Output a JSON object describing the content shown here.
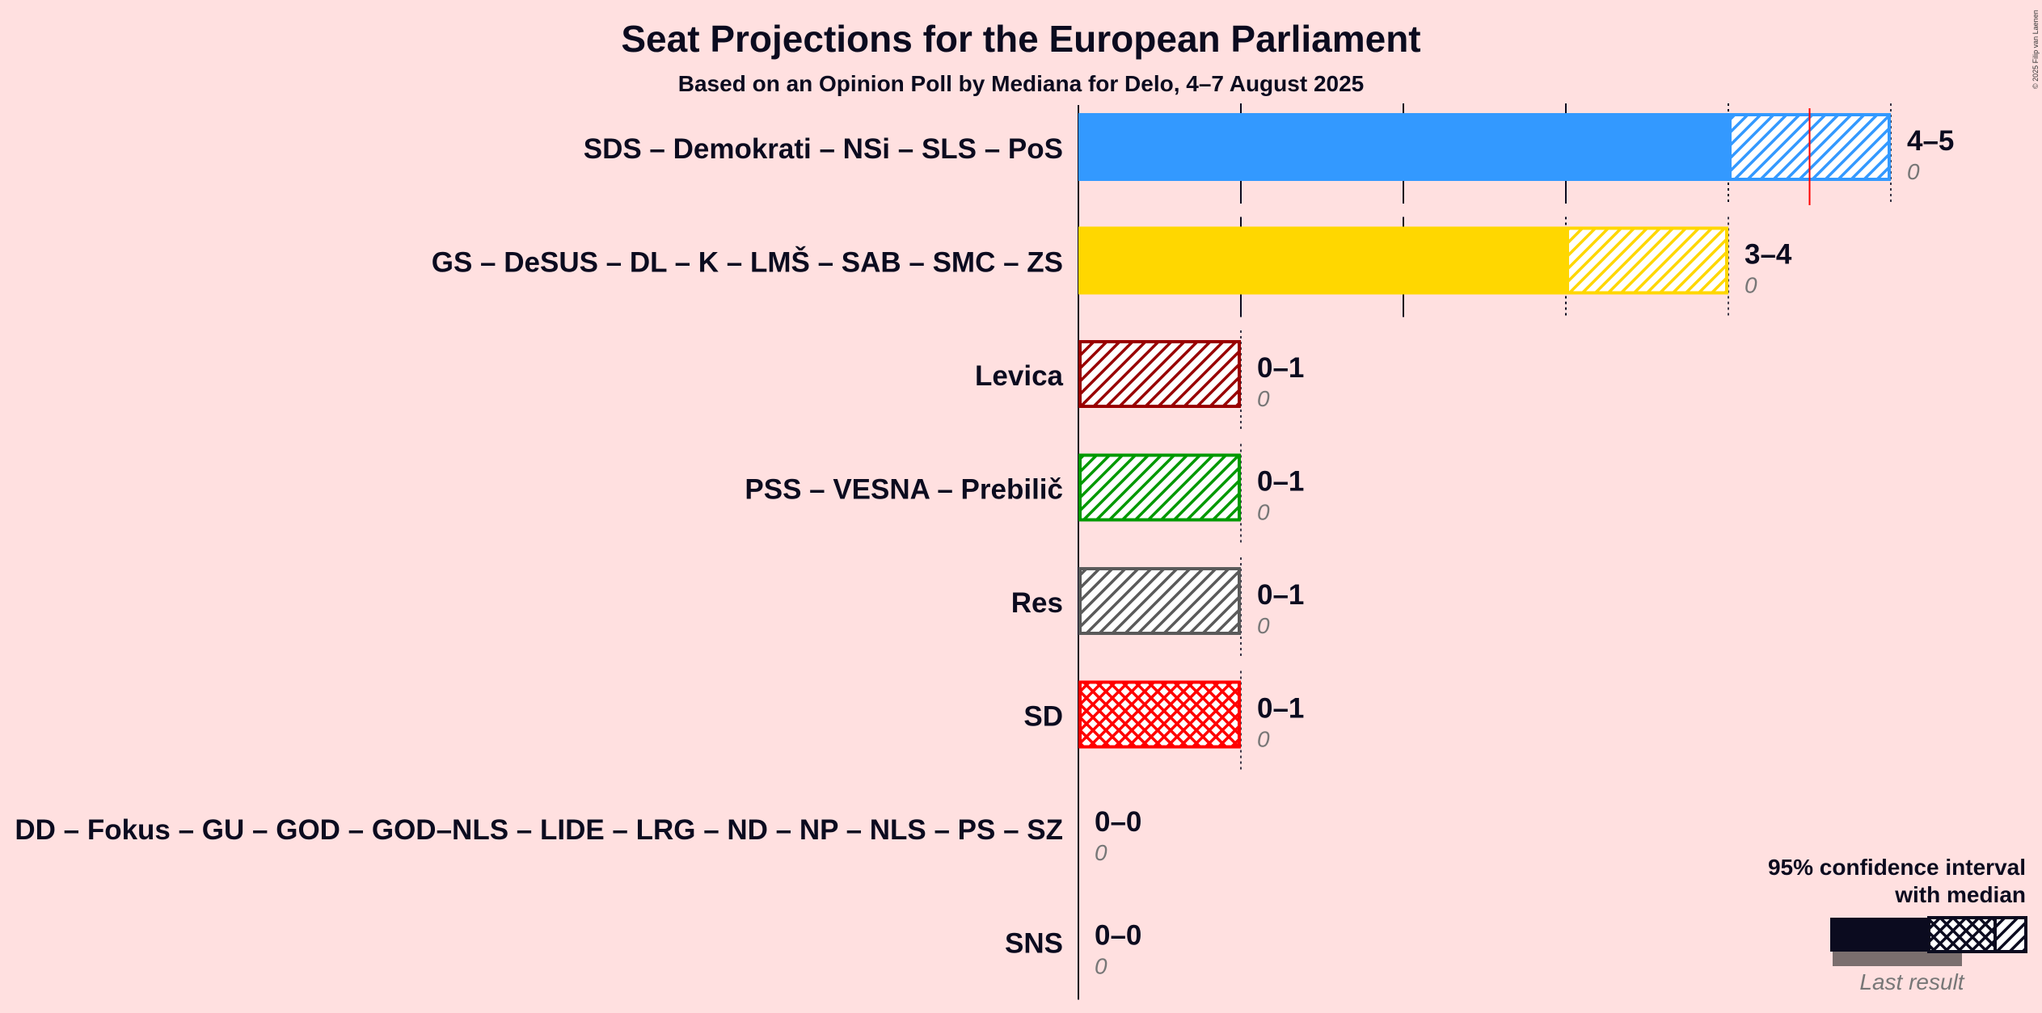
{
  "header": {
    "title": "Seat Projections for the European Parliament",
    "subtitle": "Based on an Opinion Poll by Mediana for Delo, 4–7 August 2025"
  },
  "copyright": "© 2025 Filip van Laenen",
  "legend": {
    "line1": "95% confidence interval",
    "line2": "with median",
    "last_result": "Last result"
  },
  "colors": {
    "background": "#FFE0E0",
    "median_line": "#ff0000"
  },
  "chart_data": {
    "type": "bar",
    "orientation": "horizontal",
    "title": "Seat Projections for the European Parliament",
    "subtitle": "Based on an Opinion Poll by Mediana for Delo, 4–7 August 2025",
    "xlim": [
      0,
      5
    ],
    "grid": true,
    "legend_position": "bottom-right",
    "parties": [
      {
        "name": "SDS – Demokrati – NSi – SLS – PoS",
        "low": 4,
        "high": 5,
        "median": 4.5,
        "last_result": 0,
        "range_label": "4–5",
        "last_label": "0",
        "color": "#3399FF",
        "pattern": "hatch"
      },
      {
        "name": "GS – DeSUS – DL – K – LMŠ – SAB – SMC – ZS",
        "low": 3,
        "high": 4,
        "median": null,
        "last_result": 0,
        "range_label": "3–4",
        "last_label": "0",
        "color": "#FFD700",
        "pattern": "hatch"
      },
      {
        "name": "Levica",
        "low": 0,
        "high": 1,
        "median": null,
        "last_result": 0,
        "range_label": "0–1",
        "last_label": "0",
        "color": "#990000",
        "pattern": "hatch"
      },
      {
        "name": "PSS – VESNA – Prebilič",
        "low": 0,
        "high": 1,
        "median": null,
        "last_result": 0,
        "range_label": "0–1",
        "last_label": "0",
        "color": "#009900",
        "pattern": "hatch"
      },
      {
        "name": "Res",
        "low": 0,
        "high": 1,
        "median": null,
        "last_result": 0,
        "range_label": "0–1",
        "last_label": "0",
        "color": "#5a5a5a",
        "pattern": "hatch"
      },
      {
        "name": "SD",
        "low": 0,
        "high": 1,
        "median": null,
        "last_result": 0,
        "range_label": "0–1",
        "last_label": "0",
        "color": "#FF0000",
        "pattern": "cross"
      },
      {
        "name": "DD – Fokus – GU – GOD – GOD–NLS – LIDE – LRG – ND – NP – NLS – PS – SZ",
        "low": 0,
        "high": 0,
        "median": null,
        "last_result": 0,
        "range_label": "0–0",
        "last_label": "0",
        "color": "#0b0b1f",
        "pattern": "none"
      },
      {
        "name": "SNS",
        "low": 0,
        "high": 0,
        "median": null,
        "last_result": 0,
        "range_label": "0–0",
        "last_label": "0",
        "color": "#0b0b1f",
        "pattern": "none"
      }
    ]
  }
}
